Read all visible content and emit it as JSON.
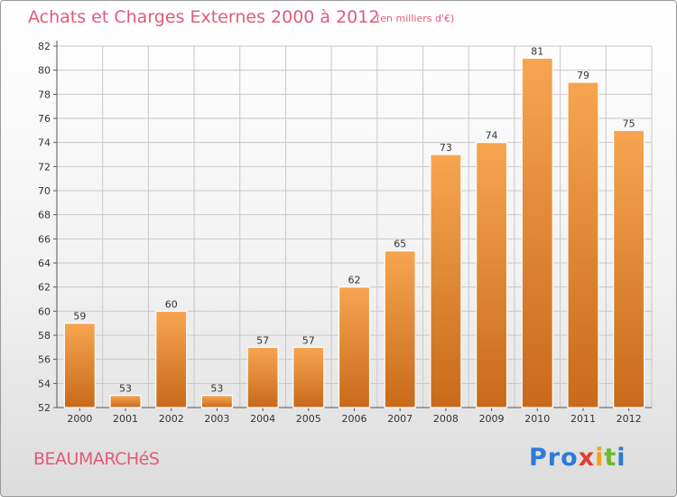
{
  "colors": {
    "accent": "#e05a7a",
    "bar_light": "#f7a551",
    "bar_dark": "#c86a1a",
    "grid": "#c8c8c8"
  },
  "chart_data": {
    "type": "bar",
    "title": "Achats et Charges Externes 2000 à 2012",
    "subtitle": "(en milliers d'€)",
    "categories": [
      "2000",
      "2001",
      "2002",
      "2003",
      "2004",
      "2005",
      "2006",
      "2007",
      "2008",
      "2009",
      "2010",
      "2011",
      "2012"
    ],
    "values": [
      59,
      53,
      60,
      53,
      57,
      57,
      62,
      65,
      73,
      74,
      81,
      79,
      75
    ],
    "ylim": [
      52,
      82
    ],
    "yticks": [
      52,
      54,
      56,
      58,
      60,
      62,
      64,
      66,
      68,
      70,
      72,
      74,
      76,
      78,
      80,
      82
    ],
    "grid": true,
    "xlabel": "",
    "ylabel": ""
  },
  "footer": {
    "city": "BEAUMARCHéS",
    "logo_letters": [
      {
        "char": "P",
        "color": "#2e7bd6"
      },
      {
        "char": "r",
        "color": "#2e7bd6"
      },
      {
        "char": "o",
        "color": "#2e7bd6"
      },
      {
        "char": "x",
        "color": "#e53c2f"
      },
      {
        "char": "i",
        "color": "#f4a21c"
      },
      {
        "char": "t",
        "color": "#6aba2a"
      },
      {
        "char": "i",
        "color": "#2e7bd6"
      }
    ]
  }
}
